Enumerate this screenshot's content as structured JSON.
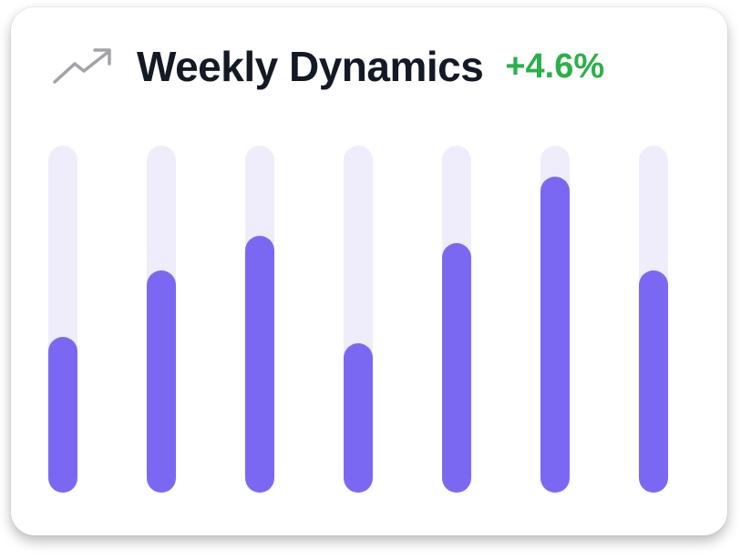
{
  "widget": {
    "title": "Weekly Dynamics",
    "change": "+4.6%",
    "trend_icon": "trending-up-icon",
    "colors": {
      "accent": "#7b68f2",
      "track": "#efedfb",
      "positive": "#2bb04a",
      "title": "#131a26"
    }
  },
  "chart_data": {
    "type": "bar",
    "levels": [
      0.45,
      0.64,
      0.74,
      0.43,
      0.72,
      0.91,
      0.64
    ]
  }
}
